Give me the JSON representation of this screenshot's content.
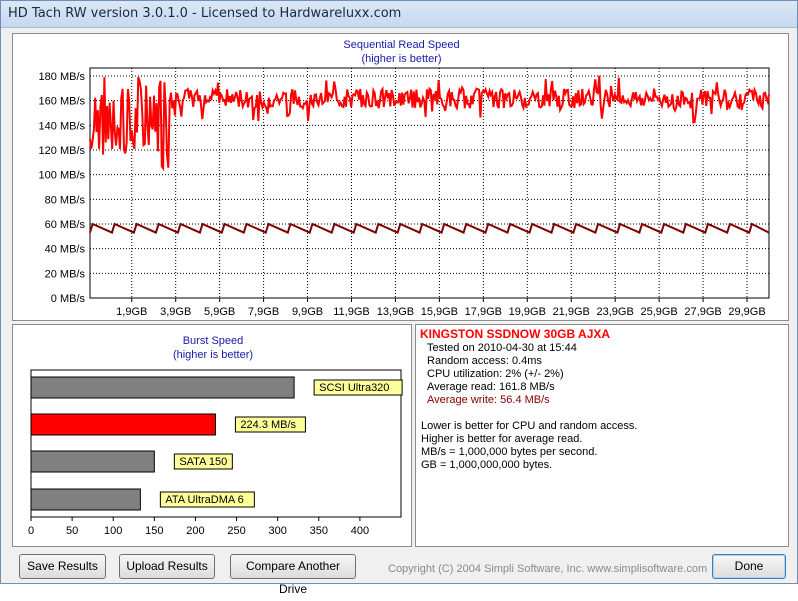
{
  "window": {
    "title": "HD Tach RW version 3.0.1.0 - Licensed to Hardwareluxx.com"
  },
  "colors": {
    "read": "#ff0000",
    "write": "#800000",
    "accent_title": "#1a1aa8",
    "bar_gray": "#808080",
    "tag_bg": "#ffff99"
  },
  "sequential": {
    "title": "Sequential Read Speed",
    "subtitle": "(higher is better)"
  },
  "burst": {
    "title": "Burst Speed",
    "subtitle": "(higher is better)"
  },
  "drive": {
    "name": "KINGSTON SSDNOW 30GB AJXA",
    "tested": "Tested on 2010-04-30 at 15:44",
    "random_access": "Random access: 0.4ms",
    "cpu": "CPU utilization: 2% (+/- 2%)",
    "avg_read": "Average read: 161.8 MB/s",
    "avg_write": "Average write: 56.4 MB/s",
    "notes": [
      "Lower is better for CPU and random access.",
      "Higher is better for average read.",
      "MB/s = 1,000,000 bytes per second.",
      "GB = 1,000,000,000 bytes."
    ]
  },
  "buttons": {
    "save": "Save Results",
    "upload": "Upload Results",
    "compare": "Compare Another Drive",
    "done": "Done"
  },
  "copyright": "Copyright (C) 2004 Simpli Software, Inc. www.simplisoftware.com",
  "chart_data": [
    {
      "type": "line",
      "ylim": [
        0,
        180
      ],
      "yticks": [
        "0 MB/s",
        "20 MB/s",
        "40 MB/s",
        "60 MB/s",
        "80 MB/s",
        "100 MB/s",
        "120 MB/s",
        "140 MB/s",
        "160 MB/s",
        "180 MB/s"
      ],
      "xlim": [
        0,
        30.9
      ],
      "xticks": [
        "1,9GB",
        "3,9GB",
        "5,9GB",
        "7,9GB",
        "9,9GB",
        "11,9GB",
        "13,9GB",
        "15,9GB",
        "17,9GB",
        "19,9GB",
        "21,9GB",
        "23,9GB",
        "25,9GB",
        "27,9GB",
        "29,9GB"
      ],
      "grid": true,
      "series": [
        {
          "role": "read",
          "approx_level": 161.8,
          "early_dip_min": 105,
          "early_dip_end_gb": 3.6
        },
        {
          "role": "write",
          "approx_level": 56.4,
          "sawtooth_high": 60,
          "sawtooth_low": 53
        }
      ]
    },
    {
      "type": "bar",
      "orientation": "horizontal",
      "xlim": [
        0,
        450
      ],
      "xticks": [
        "0",
        "50",
        "100",
        "150",
        "200",
        "250",
        "300",
        "350",
        "400"
      ],
      "bars": [
        {
          "label": "SCSI Ultra320",
          "value": 320,
          "highlight": false
        },
        {
          "label": "224.3 MB/s",
          "value": 224.3,
          "highlight": true
        },
        {
          "label": "SATA 150",
          "value": 150,
          "highlight": false
        },
        {
          "label": "ATA UltraDMA 6",
          "value": 133,
          "highlight": false
        }
      ]
    }
  ]
}
